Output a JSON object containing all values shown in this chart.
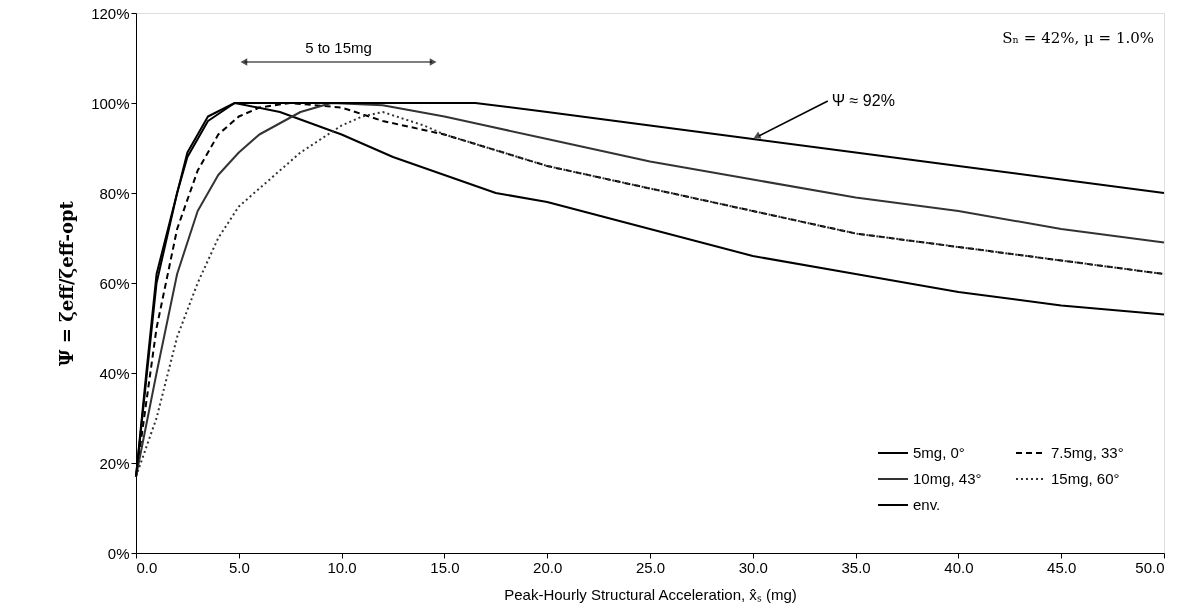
{
  "chart_data": {
    "type": "line",
    "xlabel": "Peak-Hourly Structural Acceleration, ẍ̂ₛ (mg)",
    "ylabel": "Ψ = ζeff/ζeff-opt",
    "xlim": [
      0,
      50
    ],
    "ylim": [
      0,
      120
    ],
    "xticks": [
      {
        "value": 0,
        "label": "0.0"
      },
      {
        "value": 5,
        "label": "5.0"
      },
      {
        "value": 10,
        "label": "10.0"
      },
      {
        "value": 15,
        "label": "15.0"
      },
      {
        "value": 20,
        "label": "20.0"
      },
      {
        "value": 25,
        "label": "25.0"
      },
      {
        "value": 30,
        "label": "30.0"
      },
      {
        "value": 35,
        "label": "35.0"
      },
      {
        "value": 40,
        "label": "40.0"
      },
      {
        "value": 45,
        "label": "45.0"
      },
      {
        "value": 50,
        "label": "50.0"
      }
    ],
    "yticks": [
      {
        "value": 0,
        "label": "0%"
      },
      {
        "value": 20,
        "label": "20%"
      },
      {
        "value": 40,
        "label": "40%"
      },
      {
        "value": 60,
        "label": "60%"
      },
      {
        "value": 80,
        "label": "80%"
      },
      {
        "value": 100,
        "label": "100%"
      },
      {
        "value": 120,
        "label": "120%"
      }
    ],
    "grid": false,
    "legend": "bottom right",
    "series": [
      {
        "name": "5mg, 0°",
        "color": "#000000",
        "line_style": "solid",
        "x": [
          0,
          1,
          2,
          2.5,
          3.5,
          4.8,
          7,
          10,
          12.5,
          15,
          17.5,
          20,
          25,
          30,
          35,
          40,
          45,
          50
        ],
        "values": [
          17,
          60,
          80,
          88,
          96,
          100,
          98,
          93,
          88,
          84,
          80,
          78,
          72,
          66,
          62,
          58,
          55,
          53
        ]
      },
      {
        "name": "7.5mg, 33°",
        "color": "#000000",
        "line_style": "dashed",
        "x": [
          0,
          1,
          2,
          3,
          4,
          5,
          6,
          7.5,
          10,
          12,
          15,
          20,
          25,
          30,
          35,
          40,
          45,
          50
        ],
        "values": [
          17,
          50,
          72,
          85,
          93,
          97,
          99,
          100,
          99,
          96,
          93,
          86,
          81,
          76,
          71,
          68,
          65,
          62
        ]
      },
      {
        "name": "10mg, 43°",
        "color": "#333333",
        "line_style": "solid",
        "x": [
          0,
          1,
          2,
          3,
          4,
          5,
          6,
          8,
          9.5,
          12,
          15,
          17,
          20,
          25,
          30,
          35,
          40,
          45,
          50
        ],
        "values": [
          17,
          40,
          62,
          76,
          84,
          89,
          93,
          98,
          100,
          99.5,
          97,
          95,
          92,
          87,
          83,
          79,
          76,
          72,
          69
        ]
      },
      {
        "name": "15mg, 60°",
        "color": "#333333",
        "line_style": "dotted",
        "x": [
          0,
          1,
          2,
          3,
          4,
          5,
          6,
          8,
          10,
          11,
          12,
          14,
          15,
          20,
          25,
          30,
          35,
          40,
          45,
          50
        ],
        "values": [
          17,
          30,
          48,
          60,
          70,
          77,
          81,
          89,
          95,
          97,
          98,
          95,
          93,
          86,
          81,
          76,
          71,
          68,
          65,
          62
        ]
      },
      {
        "name": "env.",
        "color": "#000000",
        "line_style": "solid",
        "x": [
          0,
          0.5,
          1,
          2,
          2.5,
          3.5,
          4.8,
          10,
          16.5,
          20,
          25,
          30,
          35,
          40,
          45,
          50
        ],
        "values": [
          17,
          40,
          62,
          80,
          89,
          97,
          100,
          100,
          100,
          98,
          95,
          92,
          89,
          86,
          83,
          80
        ]
      }
    ],
    "annotations": [
      "5 to 15mg",
      {
        "text": "Ψ ≈ 92%",
        "x": 30,
        "y": 92
      },
      "Sₙ = 42%, μ = 1.0%"
    ]
  }
}
